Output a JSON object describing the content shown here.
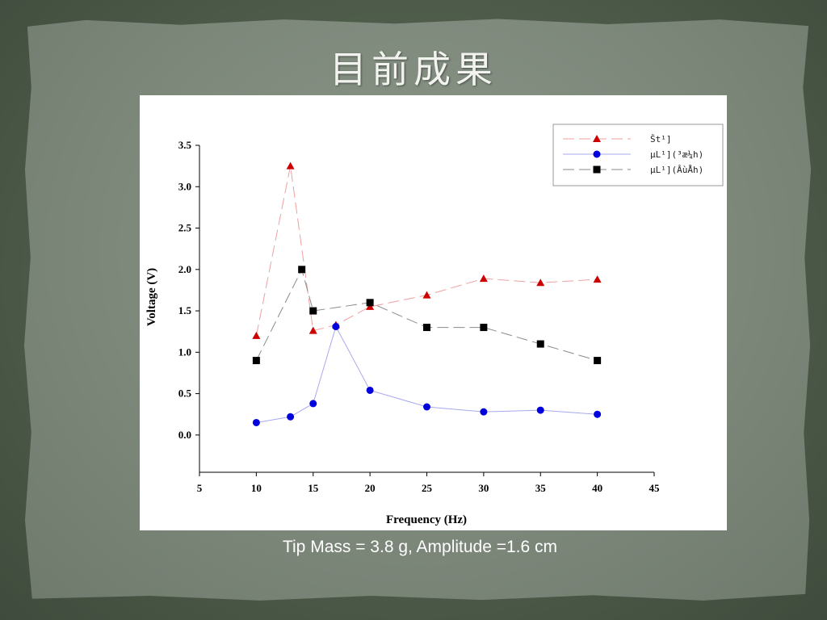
{
  "slide": {
    "title": "目前成果",
    "caption": "Tip Mass = 3.8 g, Amplitude =1.6 cm"
  },
  "chart_data": {
    "type": "line",
    "title": "",
    "xlabel": "Frequency (Hz)",
    "ylabel": "Voltage (V)",
    "xlim": [
      5,
      45
    ],
    "ylim": [
      -0.45,
      3.5
    ],
    "x_ticks": [
      "5",
      "10",
      "15",
      "20",
      "25",
      "30",
      "35",
      "40",
      "45"
    ],
    "x_tick_values": [
      5,
      10,
      15,
      20,
      25,
      30,
      35,
      40,
      45
    ],
    "y_ticks": [
      "0.0",
      "0.5",
      "1.0",
      "1.5",
      "2.0",
      "2.5",
      "3.0",
      "3.5"
    ],
    "y_tick_values": [
      0,
      0.5,
      1.0,
      1.5,
      2.0,
      2.5,
      3.0,
      3.5
    ],
    "grid": false,
    "legend_position": "top-right",
    "series": [
      {
        "name": "Št¹]",
        "color": "#cc0000",
        "line_color": "#f0a0a0",
        "marker": "triangle",
        "dash": "dashed",
        "x": [
          10,
          13,
          15,
          17,
          20,
          25,
          30,
          35,
          40
        ],
        "y": [
          1.2,
          3.25,
          1.26,
          1.33,
          1.55,
          1.69,
          1.89,
          1.84,
          1.88
        ]
      },
      {
        "name": "µL¹](³æ¼h)",
        "color": "#0000dd",
        "line_color": "#a8a8f0",
        "marker": "circle",
        "dash": "solid",
        "x": [
          10,
          13,
          15,
          17,
          20,
          25,
          30,
          35,
          40
        ],
        "y": [
          0.15,
          0.22,
          0.38,
          1.31,
          0.54,
          0.34,
          0.28,
          0.3,
          0.25
        ]
      },
      {
        "name": "µL¹](ÂùÅh)",
        "color": "#000000",
        "line_color": "#8a8a8a",
        "marker": "square",
        "dash": "dashed",
        "x": [
          10,
          14,
          15,
          20,
          25,
          30,
          35,
          40
        ],
        "y": [
          0.9,
          2.0,
          1.5,
          1.6,
          1.3,
          1.3,
          1.1,
          0.9
        ]
      }
    ]
  }
}
